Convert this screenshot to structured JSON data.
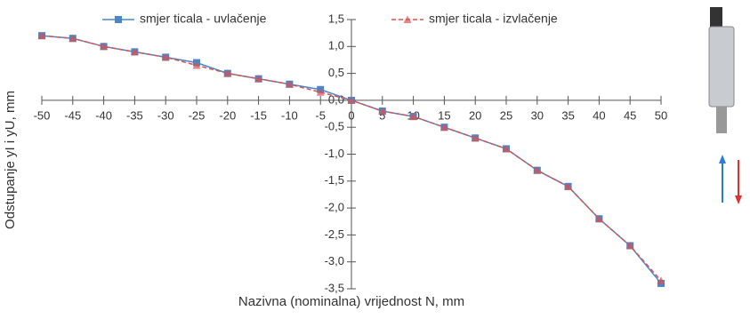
{
  "chart_data": {
    "type": "line",
    "xlabel": "Nazivna (nominalna) vrijednost N, mm",
    "ylabel": "Odstupanje yI i yU, mm",
    "x": [
      -50,
      -45,
      -40,
      -35,
      -30,
      -25,
      -20,
      -15,
      -10,
      -5,
      0,
      5,
      10,
      15,
      20,
      25,
      30,
      35,
      40,
      45,
      50
    ],
    "series": [
      {
        "name": "smjer ticala - uvlačenje",
        "color": "#4a86c8",
        "marker": "square",
        "dash": false,
        "values": [
          1.2,
          1.15,
          1.0,
          0.9,
          0.8,
          0.7,
          0.5,
          0.4,
          0.3,
          0.2,
          0,
          -0.2,
          -0.3,
          -0.5,
          -0.7,
          -0.9,
          -1.3,
          -1.6,
          -2.2,
          -2.7,
          -3.4
        ]
      },
      {
        "name": "smjer ticala - izvlačenje",
        "color": "#d9534f",
        "marker": "triangle",
        "dash": true,
        "values": [
          1.2,
          1.15,
          1.0,
          0.9,
          0.8,
          0.65,
          0.5,
          0.4,
          0.3,
          0.15,
          0,
          -0.2,
          -0.3,
          -0.5,
          -0.7,
          -0.9,
          -1.3,
          -1.6,
          -2.2,
          -2.7,
          -3.35
        ]
      }
    ],
    "xlim": [
      -50,
      50
    ],
    "xticks": [
      -50,
      -45,
      -40,
      -35,
      -30,
      -25,
      -20,
      -15,
      -10,
      -5,
      0,
      5,
      10,
      15,
      20,
      25,
      30,
      35,
      40,
      45,
      50
    ],
    "ylim": [
      -3.5,
      1.5
    ],
    "yticks": [
      {
        "value": 1.5,
        "label": "1,5"
      },
      {
        "value": 1.0,
        "label": "1,0"
      },
      {
        "value": 0.5,
        "label": "0,5"
      },
      {
        "value": 0,
        "label": "0,0"
      },
      {
        "value": -0.5,
        "label": "-0,5"
      },
      {
        "value": -1.0,
        "label": "-1,0"
      },
      {
        "value": -1.5,
        "label": "-1,5"
      },
      {
        "value": -2.0,
        "label": "-2,0"
      },
      {
        "value": -2.5,
        "label": "-2,5"
      },
      {
        "value": -3.0,
        "label": "-3,0"
      },
      {
        "value": -3.5,
        "label": "-3,5"
      }
    ]
  }
}
